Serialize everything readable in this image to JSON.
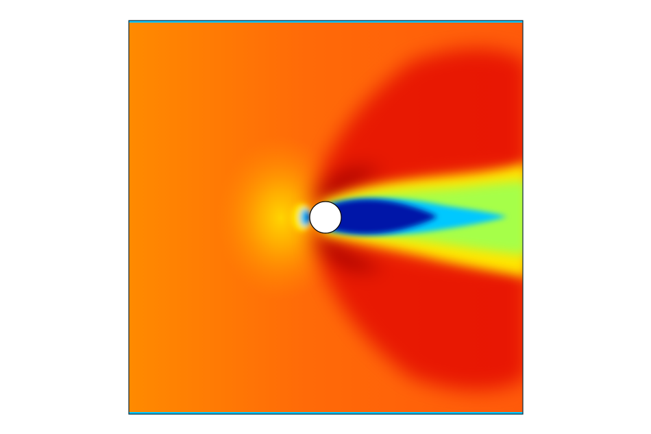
{
  "figure": {
    "kind": "flow field colormap around a circular obstacle",
    "colormap": "jet",
    "colors": {
      "background": "#ffffff",
      "frame": "#0a2a3a",
      "freestream": "#ff5a0a",
      "inflow": "#ff8a00",
      "high": "#d40000",
      "wake_core": "#0018a8",
      "wake_mid": "#00c8ff",
      "wake_outer": "#a6ff4a",
      "wake_edge": "#ffe600",
      "obstacle_fill": "#ffffff",
      "obstacle_edge": "#000000"
    }
  }
}
